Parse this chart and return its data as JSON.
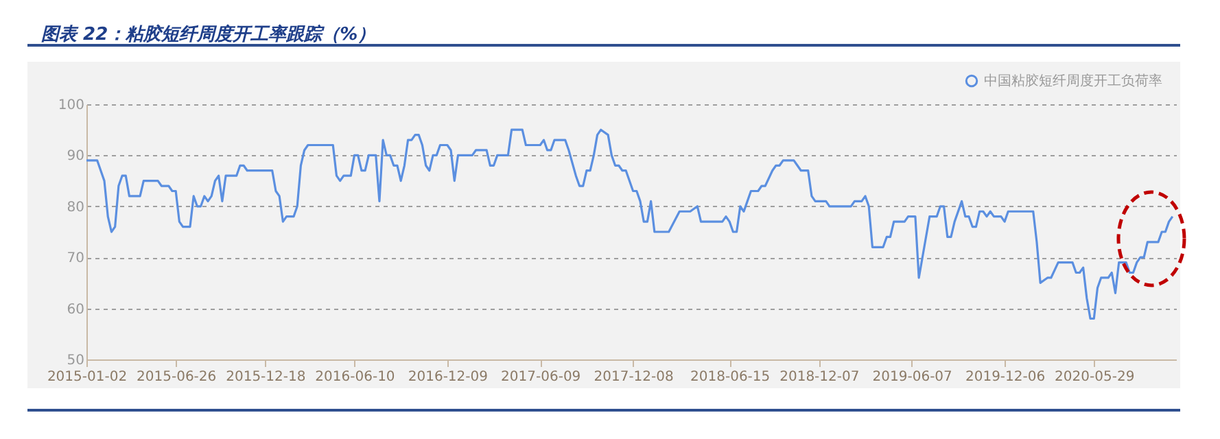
{
  "chart_data": {
    "type": "line",
    "title": "图表 22：粘胶短纤周度开工率跟踪（%）",
    "x": [
      "2015-01-02",
      "2015-01-23",
      "2015-02-06",
      "2015-02-13",
      "2015-02-20",
      "2015-02-27",
      "2015-03-06",
      "2015-03-13",
      "2015-03-20",
      "2015-03-27",
      "2015-04-17",
      "2015-04-24",
      "2015-05-22",
      "2015-05-29",
      "2015-06-12",
      "2015-06-19",
      "2015-06-26",
      "2015-07-03",
      "2015-07-10",
      "2015-07-24",
      "2015-07-31",
      "2015-08-07",
      "2015-08-14",
      "2015-08-21",
      "2015-08-28",
      "2015-09-04",
      "2015-09-11",
      "2015-09-18",
      "2015-09-25",
      "2015-10-02",
      "2015-10-23",
      "2015-10-30",
      "2015-11-06",
      "2015-11-13",
      "2016-01-01",
      "2016-01-08",
      "2016-01-15",
      "2016-01-22",
      "2016-01-29",
      "2016-02-12",
      "2016-02-19",
      "2016-02-26",
      "2016-03-04",
      "2016-03-11",
      "2016-04-29",
      "2016-05-06",
      "2016-05-13",
      "2016-05-20",
      "2016-06-03",
      "2016-06-10",
      "2016-06-17",
      "2016-06-24",
      "2016-07-01",
      "2016-07-08",
      "2016-07-22",
      "2016-07-29",
      "2016-08-05",
      "2016-08-12",
      "2016-08-19",
      "2016-08-26",
      "2016-09-02",
      "2016-09-09",
      "2016-09-16",
      "2016-09-23",
      "2016-09-30",
      "2016-10-07",
      "2016-10-14",
      "2016-10-21",
      "2016-10-28",
      "2016-11-04",
      "2016-11-11",
      "2016-11-18",
      "2016-11-25",
      "2016-12-09",
      "2016-12-16",
      "2016-12-23",
      "2016-12-30",
      "2017-01-27",
      "2017-02-03",
      "2017-02-24",
      "2017-03-03",
      "2017-03-10",
      "2017-03-17",
      "2017-04-07",
      "2017-04-14",
      "2017-05-05",
      "2017-05-12",
      "2017-06-09",
      "2017-06-16",
      "2017-06-23",
      "2017-06-30",
      "2017-07-07",
      "2017-07-28",
      "2017-08-04",
      "2017-08-18",
      "2017-08-25",
      "2017-09-01",
      "2017-09-08",
      "2017-09-15",
      "2017-09-22",
      "2017-09-29",
      "2017-10-06",
      "2017-10-20",
      "2017-10-27",
      "2017-11-03",
      "2017-11-10",
      "2017-11-17",
      "2017-11-24",
      "2017-12-08",
      "2017-12-15",
      "2017-12-22",
      "2017-12-29",
      "2018-01-05",
      "2018-01-12",
      "2018-01-19",
      "2018-02-16",
      "2018-03-09",
      "2018-03-30",
      "2018-04-13",
      "2018-04-20",
      "2018-06-01",
      "2018-06-08",
      "2018-06-15",
      "2018-06-22",
      "2018-06-29",
      "2018-07-06",
      "2018-07-13",
      "2018-07-20",
      "2018-07-27",
      "2018-08-10",
      "2018-08-17",
      "2018-08-24",
      "2018-09-07",
      "2018-09-14",
      "2018-09-21",
      "2018-09-28",
      "2018-10-19",
      "2018-10-26",
      "2018-11-02",
      "2018-11-16",
      "2018-11-23",
      "2018-11-30",
      "2018-12-21",
      "2018-12-28",
      "2019-02-08",
      "2019-02-15",
      "2019-03-01",
      "2019-03-08",
      "2019-03-15",
      "2019-03-22",
      "2019-04-12",
      "2019-04-19",
      "2019-04-26",
      "2019-05-03",
      "2019-05-24",
      "2019-05-31",
      "2019-06-14",
      "2019-06-21",
      "2019-06-28",
      "2019-07-12",
      "2019-07-26",
      "2019-08-02",
      "2019-08-09",
      "2019-08-16",
      "2019-08-23",
      "2019-08-30",
      "2019-09-13",
      "2019-09-20",
      "2019-09-27",
      "2019-10-04",
      "2019-10-11",
      "2019-10-18",
      "2019-10-25",
      "2019-11-01",
      "2019-11-08",
      "2019-11-15",
      "2019-11-29",
      "2019-12-06",
      "2019-12-13",
      "2020-01-31",
      "2020-02-07",
      "2020-02-14",
      "2020-02-28",
      "2020-03-06",
      "2020-03-20",
      "2020-04-17",
      "2020-04-24",
      "2020-05-01",
      "2020-05-08",
      "2020-05-15",
      "2020-05-22",
      "2020-05-29",
      "2020-06-05",
      "2020-06-12",
      "2020-06-26",
      "2020-07-03",
      "2020-07-10",
      "2020-07-17",
      "2020-07-31",
      "2020-08-07",
      "2020-08-14",
      "2020-08-21",
      "2020-08-28",
      "2020-09-04",
      "2020-09-11",
      "2020-10-02",
      "2020-10-09",
      "2020-10-16",
      "2020-10-23",
      "2020-10-30"
    ],
    "series": [
      {
        "name": "中国粘胶短纤周度开工负荷率",
        "color": "#5b8fe0",
        "values": [
          89,
          89,
          85,
          78,
          75,
          76,
          84,
          86,
          86,
          82,
          82,
          85,
          85,
          84,
          84,
          83,
          83,
          77,
          76,
          76,
          82,
          80,
          80,
          82,
          81,
          82,
          85,
          86,
          81,
          86,
          86,
          88,
          88,
          87,
          87,
          83,
          82,
          77,
          78,
          78,
          80,
          88,
          91,
          92,
          92,
          86,
          85,
          86,
          86,
          90,
          90,
          87,
          87,
          90,
          90,
          81,
          93,
          90,
          90,
          88,
          88,
          85,
          88,
          93,
          93,
          94,
          94,
          92,
          88,
          87,
          90,
          90,
          92,
          92,
          91,
          85,
          90,
          90,
          91,
          91,
          88,
          88,
          90,
          90,
          95,
          95,
          92,
          92,
          93,
          91,
          91,
          93,
          93,
          91,
          86,
          84,
          84,
          87,
          87,
          90,
          94,
          95,
          94,
          90,
          88,
          88,
          87,
          87,
          83,
          83,
          81,
          77,
          77,
          81,
          75,
          75,
          79,
          79,
          80,
          77,
          77,
          78,
          77,
          75,
          75,
          80,
          79,
          81,
          83,
          83,
          84,
          84,
          87,
          88,
          88,
          89,
          89,
          88,
          87,
          87,
          82,
          81,
          81,
          80,
          80,
          81,
          81,
          82,
          80,
          72,
          72,
          74,
          74,
          77,
          77,
          78,
          78,
          66,
          70,
          78,
          78,
          80,
          80,
          74,
          74,
          77,
          81,
          78,
          78,
          76,
          76,
          79,
          79,
          78,
          79,
          78,
          78,
          77,
          79,
          79,
          73,
          65,
          66,
          66,
          69,
          69,
          67,
          67,
          68,
          62,
          58,
          58,
          64,
          66,
          66,
          67,
          63,
          69,
          69,
          67,
          67,
          69,
          70,
          70,
          73,
          73,
          75,
          75,
          77,
          78
        ]
      }
    ],
    "xlim": [
      "2015-01-02",
      "2020-11-06"
    ],
    "xticks": [
      "2015-01-02",
      "2015-06-26",
      "2015-12-18",
      "2016-06-10",
      "2016-12-09",
      "2017-06-09",
      "2017-12-08",
      "2018-06-15",
      "2018-12-07",
      "2019-06-07",
      "2019-12-06",
      "2020-05-29"
    ],
    "ylim": [
      50,
      100
    ],
    "yticks": [
      50,
      60,
      70,
      80,
      90,
      100
    ],
    "grid": "y",
    "legend": "top right"
  }
}
